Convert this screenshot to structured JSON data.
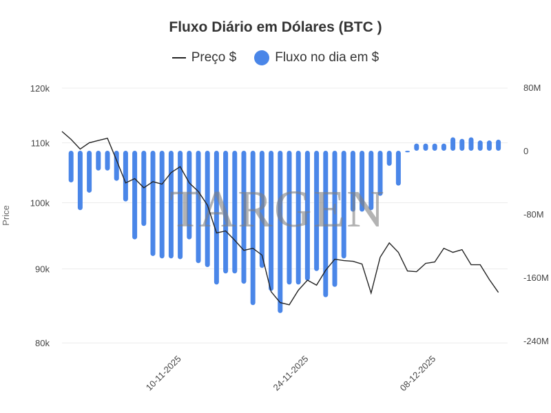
{
  "chart_data": {
    "type": "bar+line",
    "title": "Fluxo Diário em Dólares (BTC )",
    "legend": [
      {
        "name": "Preço $",
        "marker": "line",
        "color": "#222222"
      },
      {
        "name": "Fluxo no dia em $",
        "marker": "circle",
        "color": "#4a86e8"
      }
    ],
    "legend_position": "top",
    "ylabel_left": "Price",
    "ylabel_right": "",
    "left_axis": {
      "ticks": [
        "120k",
        "110k",
        "100k",
        "90k",
        "80k"
      ],
      "tick_values": [
        120000,
        110000,
        100000,
        90000,
        80000
      ],
      "scale": "log",
      "range": [
        80000,
        120000
      ]
    },
    "right_axis": {
      "ticks": [
        "80M",
        "0",
        "-80M",
        "-160M",
        "-240M"
      ],
      "tick_values": [
        80,
        0,
        -80,
        -160,
        -240
      ],
      "unit": "M USD",
      "range": [
        -240,
        80
      ]
    },
    "x_tick_labels": [
      "10-11-2025",
      "24-11-2025",
      "08-12-2025"
    ],
    "grid": true,
    "watermark": "TARGEN",
    "categories": [
      "28-10-2025",
      "29-10-2025",
      "30-10-2025",
      "31-10-2025",
      "01-11-2025",
      "02-11-2025",
      "03-11-2025",
      "04-11-2025",
      "05-11-2025",
      "06-11-2025",
      "07-11-2025",
      "08-11-2025",
      "09-11-2025",
      "10-11-2025",
      "11-11-2025",
      "12-11-2025",
      "13-11-2025",
      "14-11-2025",
      "15-11-2025",
      "16-11-2025",
      "17-11-2025",
      "18-11-2025",
      "19-11-2025",
      "20-11-2025",
      "21-11-2025",
      "22-11-2025",
      "23-11-2025",
      "24-11-2025",
      "25-11-2025",
      "26-11-2025",
      "27-11-2025",
      "28-11-2025",
      "29-11-2025",
      "30-11-2025",
      "01-12-2025",
      "02-12-2025",
      "03-12-2025",
      "04-12-2025",
      "05-12-2025",
      "06-12-2025",
      "07-12-2025",
      "08-12-2025",
      "09-12-2025",
      "10-12-2025",
      "11-12-2025",
      "12-12-2025",
      "13-12-2025",
      "14-12-2025",
      "15-12-2025"
    ],
    "series": [
      {
        "name": "Preço $",
        "type": "line",
        "axis": "left",
        "values": [
          112000,
          110600,
          108900,
          110000,
          110400,
          110800,
          107000,
          103200,
          103900,
          102400,
          103400,
          103000,
          104900,
          105900,
          103200,
          101800,
          99600,
          95300,
          95600,
          94200,
          92700,
          93000,
          92000,
          86800,
          85300,
          85000,
          87000,
          88400,
          87700,
          89800,
          91400,
          91200,
          91100,
          90700,
          86600,
          91700,
          93800,
          92400,
          89700,
          89600,
          90800,
          91000,
          93000,
          92400,
          92800,
          90600,
          90600,
          88500,
          86700
        ]
      },
      {
        "name": "Fluxo no dia em $",
        "type": "bar",
        "axis": "right",
        "unit": "M",
        "values": [
          null,
          -40,
          -75,
          -53,
          -25,
          -25,
          -38,
          -64,
          -112,
          -95,
          -133,
          -136,
          -136,
          -137,
          -112,
          -142,
          -147,
          -169,
          -155,
          -155,
          -168,
          -195,
          -148,
          -177,
          -205,
          -169,
          -169,
          -164,
          -152,
          -185,
          -172,
          -136,
          -77,
          -77,
          -75,
          -57,
          -19,
          -44,
          -2,
          9,
          9,
          9,
          9,
          17,
          15,
          17,
          13,
          13,
          14
        ]
      }
    ]
  },
  "title": "Fluxo Diário em Dólares (BTC )",
  "legend": {
    "price_label": "Preço $",
    "flow_label": "Fluxo no dia em $"
  },
  "colors": {
    "bar": "#4a86e8",
    "line": "#222222",
    "grid": "#ececec"
  }
}
